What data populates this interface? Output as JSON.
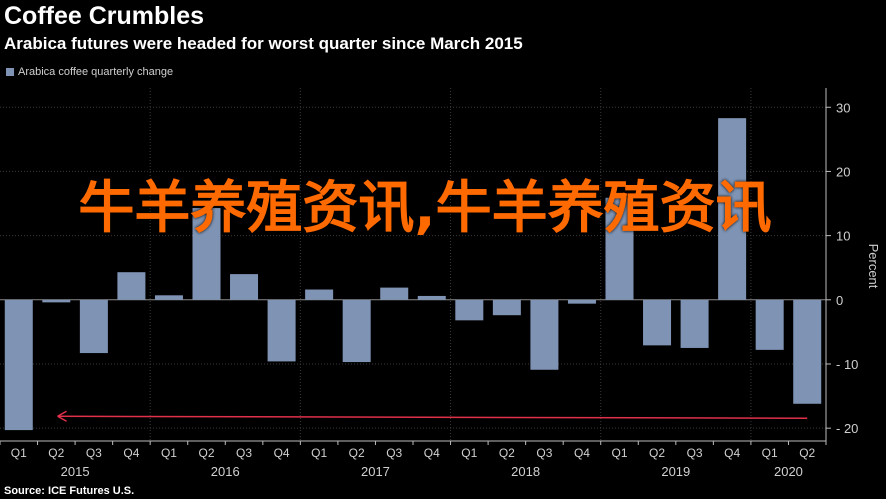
{
  "chart_data": {
    "type": "bar",
    "title": "Coffee Crumbles",
    "subtitle": "Arabica futures were headed for worst quarter since March 2015",
    "ylabel": "Percent",
    "ylim": [
      -22,
      33
    ],
    "yticks": [
      30,
      20,
      10,
      0,
      -10,
      -20
    ],
    "ytick_labels": [
      "30",
      "20",
      "10",
      "0",
      "- 10",
      "- 20"
    ],
    "grid": true,
    "legend_position": "top-left",
    "categories": [
      "Q1",
      "Q2",
      "Q3",
      "Q4",
      "Q1",
      "Q2",
      "Q3",
      "Q4",
      "Q1",
      "Q2",
      "Q3",
      "Q4",
      "Q1",
      "Q2",
      "Q3",
      "Q4",
      "Q1",
      "Q2",
      "Q3",
      "Q4",
      "Q1",
      "Q2"
    ],
    "years": [
      {
        "label": "2015",
        "span": [
          0,
          3
        ]
      },
      {
        "label": "2016",
        "span": [
          4,
          7
        ]
      },
      {
        "label": "2017",
        "span": [
          8,
          11
        ]
      },
      {
        "label": "2018",
        "span": [
          12,
          15
        ]
      },
      {
        "label": "2019",
        "span": [
          16,
          19
        ]
      },
      {
        "label": "2020",
        "span": [
          20,
          21
        ]
      }
    ],
    "series": [
      {
        "name": "Arabica coffee quarterly change",
        "color": "#7f94b5",
        "values": [
          -20.3,
          -0.4,
          -8.3,
          4.3,
          0.7,
          14.3,
          4.0,
          -9.6,
          1.6,
          -9.7,
          1.9,
          0.6,
          -3.2,
          -2.4,
          -10.9,
          -0.6,
          15.9,
          -7.1,
          -7.5,
          28.3,
          -7.8,
          -16.2
        ]
      }
    ],
    "annotations": [
      {
        "type": "arrow",
        "color": "#e0304a",
        "from_index": 21,
        "to_index": 0,
        "y": -18.3
      }
    ]
  },
  "source": "Source: ICE Futures U.S.",
  "overlay_text": "牛羊养殖资讯,牛羊养殖资讯"
}
